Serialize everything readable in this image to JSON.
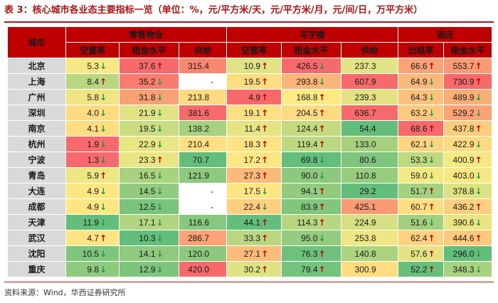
{
  "caption": "表 3：核心城市各业态主要指标一览（单位：%，元/平方米/天，元/平方米/月，元/间/日，万平方米）",
  "source": "资料来源：Wind，华西证券研究所",
  "header": {
    "city": "城市",
    "groups": [
      "零售物业",
      "写字楼",
      "酒店"
    ],
    "columns": [
      "空置率",
      "租金水平",
      "供给",
      "空置率",
      "租金水平",
      "供给",
      "出租率",
      "租金水平"
    ]
  },
  "colors": {
    "up_arrow": "#c00000",
    "down_arrow": "#1e9a3c",
    "header": "#c00000",
    "city_bg": "#d9d9d9"
  },
  "rows": [
    {
      "city": "北京",
      "cells": [
        {
          "v": "5.3",
          "a": "down",
          "c": "#f7e883"
        },
        {
          "v": "37.6",
          "a": "up",
          "c": "#f8696b"
        },
        {
          "v": "315.4",
          "a": "",
          "c": "#f98770"
        },
        {
          "v": "10.9",
          "a": "up",
          "c": "#dfe383"
        },
        {
          "v": "426.5",
          "a": "down",
          "c": "#f8696b"
        },
        {
          "v": "237.3",
          "a": "",
          "c": "#e2e383"
        },
        {
          "v": "66.6",
          "a": "up",
          "c": "#fba276"
        },
        {
          "v": "553.7",
          "a": "up",
          "c": "#fa9b74"
        }
      ]
    },
    {
      "city": "上海",
      "cells": [
        {
          "v": "8.4",
          "a": "up",
          "c": "#b9d780"
        },
        {
          "v": "35.2",
          "a": "down",
          "c": "#f97c6f"
        },
        {
          "v": "-",
          "a": "",
          "c": "#ffffff"
        },
        {
          "v": "19.5",
          "a": "up",
          "c": "#fedd81"
        },
        {
          "v": "293.8",
          "a": "down",
          "c": "#fcb479"
        },
        {
          "v": "607.9",
          "a": "",
          "c": "#f8696b"
        },
        {
          "v": "64.9",
          "a": "down",
          "c": "#fcb77a"
        },
        {
          "v": "730.9",
          "a": "up",
          "c": "#f8696b"
        }
      ]
    },
    {
      "city": "广州",
      "cells": [
        {
          "v": "5.8",
          "a": "down",
          "c": "#efe683"
        },
        {
          "v": "31.8",
          "a": "down",
          "c": "#faa075"
        },
        {
          "v": "213.8",
          "a": "",
          "c": "#fedb81"
        },
        {
          "v": "4.9",
          "a": "up",
          "c": "#f8696b"
        },
        {
          "v": "168.8",
          "a": "up",
          "c": "#ffeb84"
        },
        {
          "v": "239.3",
          "a": "",
          "c": "#e3e383"
        },
        {
          "v": "64.3",
          "a": "down",
          "c": "#fdc17c"
        },
        {
          "v": "489.9",
          "a": "down",
          "c": "#fbaf78"
        }
      ]
    },
    {
      "city": "深圳",
      "cells": [
        {
          "v": "4.0",
          "a": "down",
          "c": "#fedb81"
        },
        {
          "v": "21.9",
          "a": "down",
          "c": "#dfe383"
        },
        {
          "v": "381.6",
          "a": "",
          "c": "#f8696b"
        },
        {
          "v": "19.1",
          "a": "up",
          "c": "#fedf82"
        },
        {
          "v": "204.5",
          "a": "up",
          "c": "#fedb81"
        },
        {
          "v": "636.7",
          "a": "",
          "c": "#f8696b"
        },
        {
          "v": "63.2",
          "a": "down",
          "c": "#fdc97d"
        },
        {
          "v": "529.2",
          "a": "down",
          "c": "#fba376"
        }
      ]
    },
    {
      "city": "南京",
      "cells": [
        {
          "v": "4.1",
          "a": "down",
          "c": "#fedd81"
        },
        {
          "v": "19.5",
          "a": "down",
          "c": "#c9dc81"
        },
        {
          "v": "138.2",
          "a": "",
          "c": "#a6d27f"
        },
        {
          "v": "11.4",
          "a": "up",
          "c": "#e5e483"
        },
        {
          "v": "124.4",
          "a": "up",
          "c": "#c4da81"
        },
        {
          "v": "54.4",
          "a": "",
          "c": "#63be7b"
        },
        {
          "v": "68.6",
          "a": "up",
          "c": "#f8696b"
        },
        {
          "v": "437.8",
          "a": "up",
          "c": "#fdcd7e"
        }
      ]
    },
    {
      "city": "杭州",
      "cells": [
        {
          "v": "1.9",
          "a": "down",
          "c": "#f8696b"
        },
        {
          "v": "22.9",
          "a": "down",
          "c": "#e8e583"
        },
        {
          "v": "210.4",
          "a": "",
          "c": "#fedf82"
        },
        {
          "v": "18.3",
          "a": "up",
          "c": "#fee383"
        },
        {
          "v": "119.4",
          "a": "up",
          "c": "#bcd880"
        },
        {
          "v": "133.0",
          "a": "",
          "c": "#a5d17f"
        },
        {
          "v": "62.1",
          "a": "down",
          "c": "#fed480"
        },
        {
          "v": "422.9",
          "a": "down",
          "c": "#feda81"
        }
      ]
    },
    {
      "city": "宁波",
      "cells": [
        {
          "v": "1.3",
          "a": "down",
          "c": "#f8696b"
        },
        {
          "v": "23.3",
          "a": "up",
          "c": "#eae583"
        },
        {
          "v": "70.7",
          "a": "",
          "c": "#63be7b"
        },
        {
          "v": "17.2",
          "a": "up",
          "c": "#fee783"
        },
        {
          "v": "69.8",
          "a": "down",
          "c": "#63be7b"
        },
        {
          "v": "80.6",
          "a": "",
          "c": "#7fc67d"
        },
        {
          "v": "53.3",
          "a": "down",
          "c": "#bfd980"
        },
        {
          "v": "400.9",
          "a": "up",
          "c": "#f4e883"
        }
      ]
    },
    {
      "city": "青岛",
      "cells": [
        {
          "v": "5.9",
          "a": "up",
          "c": "#ece683"
        },
        {
          "v": "16.5",
          "a": "down",
          "c": "#a9d27f"
        },
        {
          "v": "121.9",
          "a": "",
          "c": "#8dca7e"
        },
        {
          "v": "27.3",
          "a": "up",
          "c": "#fcba7a"
        },
        {
          "v": "90.0",
          "a": "down",
          "c": "#8bc97e"
        },
        {
          "v": "110.8",
          "a": "",
          "c": "#95cc7e"
        },
        {
          "v": "59.0",
          "a": "down",
          "c": "#f4e883"
        },
        {
          "v": "403.0",
          "a": "down",
          "c": "#f6e883"
        }
      ]
    },
    {
      "city": "大连",
      "cells": [
        {
          "v": "4.9",
          "a": "down",
          "c": "#fee683"
        },
        {
          "v": "14.5",
          "a": "down",
          "c": "#92cb7e"
        },
        {
          "v": "-",
          "a": "",
          "c": "#ffffff"
        },
        {
          "v": "17.5",
          "a": "down",
          "c": "#fee683"
        },
        {
          "v": "94.1",
          "a": "up",
          "c": "#93cb7e"
        },
        {
          "v": "29.2",
          "a": "",
          "c": "#63be7b"
        },
        {
          "v": "51.7",
          "a": "up",
          "c": "#a3d17f"
        },
        {
          "v": "378.8",
          "a": "down",
          "c": "#dde283"
        }
      ]
    },
    {
      "city": "成都",
      "cells": [
        {
          "v": "4.9",
          "a": "down",
          "c": "#fee683"
        },
        {
          "v": "12.5",
          "a": "down",
          "c": "#78c47c"
        },
        {
          "v": "-",
          "a": "",
          "c": "#ffffff"
        },
        {
          "v": "22.4",
          "a": "down",
          "c": "#fdcf7e"
        },
        {
          "v": "83.9",
          "a": "up",
          "c": "#80c67d"
        },
        {
          "v": "425.1",
          "a": "",
          "c": "#fa9a74"
        },
        {
          "v": "60.7",
          "a": "up",
          "c": "#fede81"
        },
        {
          "v": "436.2",
          "a": "up",
          "c": "#fdcf7e"
        }
      ]
    },
    {
      "city": "天津",
      "cells": [
        {
          "v": "11.9",
          "a": "down",
          "c": "#63be7b"
        },
        {
          "v": "17.1",
          "a": "down",
          "c": "#b1d580"
        },
        {
          "v": "116.6",
          "a": "",
          "c": "#86c87d"
        },
        {
          "v": "44.1",
          "a": "up",
          "c": "#63be7b"
        },
        {
          "v": "114.3",
          "a": "up",
          "c": "#b6d680"
        },
        {
          "v": "224.9",
          "a": "",
          "c": "#d6e082"
        },
        {
          "v": "51.6",
          "a": "down",
          "c": "#a1d07f"
        },
        {
          "v": "390.6",
          "a": "down",
          "c": "#e9e583"
        }
      ]
    },
    {
      "city": "武汉",
      "cells": [
        {
          "v": "4.7",
          "a": "up",
          "c": "#fee483"
        },
        {
          "v": "10.3",
          "a": "down",
          "c": "#63be7b"
        },
        {
          "v": "286.7",
          "a": "",
          "c": "#fba276"
        },
        {
          "v": "33.3",
          "a": "up",
          "c": "#b9d780"
        },
        {
          "v": "95.0",
          "a": "down",
          "c": "#94cb7e"
        },
        {
          "v": "253.8",
          "a": "",
          "c": "#eee683"
        },
        {
          "v": "62.4",
          "a": "up",
          "c": "#fed07f"
        },
        {
          "v": "444.6",
          "a": "up",
          "c": "#fdc97d"
        }
      ]
    },
    {
      "city": "沈阳",
      "cells": [
        {
          "v": "10.5",
          "a": "down",
          "c": "#7fc67d"
        },
        {
          "v": "14.1",
          "a": "down",
          "c": "#8ec97e"
        },
        {
          "v": "120.0",
          "a": "",
          "c": "#8bc97e"
        },
        {
          "v": "27.1",
          "a": "up",
          "c": "#fcbd7b"
        },
        {
          "v": "76.3",
          "a": "up",
          "c": "#6ec17c"
        },
        {
          "v": "140.8",
          "a": "",
          "c": "#acd380"
        },
        {
          "v": "57.6",
          "a": "up",
          "c": "#e3e383"
        },
        {
          "v": "296.0",
          "a": "down",
          "c": "#63be7b"
        }
      ]
    },
    {
      "city": "重庆",
      "cells": [
        {
          "v": "9.8",
          "a": "down",
          "c": "#8dca7e"
        },
        {
          "v": "12.9",
          "a": "down",
          "c": "#7dc57d"
        },
        {
          "v": "420.0",
          "a": "",
          "c": "#f8696b"
        },
        {
          "v": "30.2",
          "a": "up",
          "c": "#dde283"
        },
        {
          "v": "79.4",
          "a": "up",
          "c": "#74c37c"
        },
        {
          "v": "300.9",
          "a": "",
          "c": "#fedd81"
        },
        {
          "v": "52.2",
          "a": "up",
          "c": "#66bf7b"
        },
        {
          "v": "348.3",
          "a": "down",
          "c": "#a7d27f"
        }
      ]
    }
  ]
}
